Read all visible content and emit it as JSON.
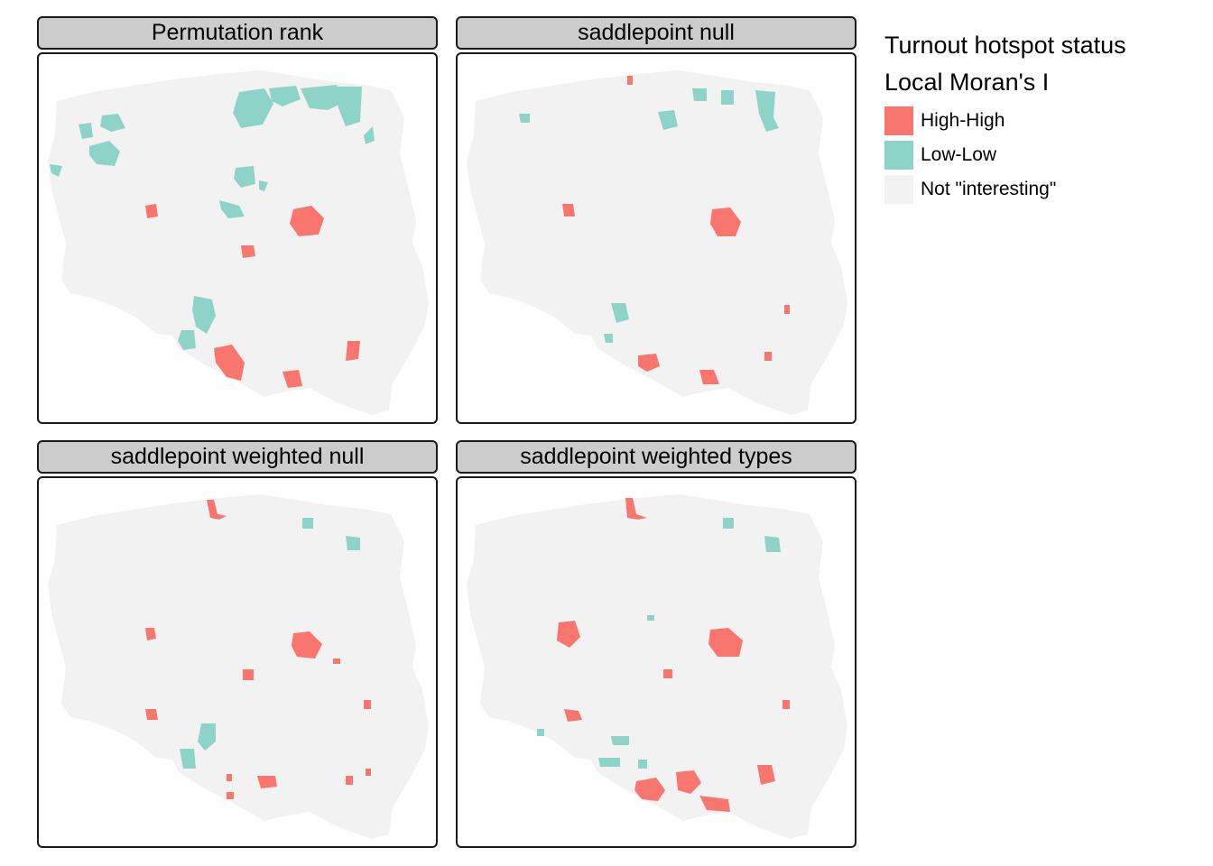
{
  "legend": {
    "title": "Turnout hotspot status",
    "subtitle": "Local Moran's I",
    "items": [
      {
        "label": "High-High",
        "color": "#f8766d"
      },
      {
        "label": "Low-Low",
        "color": "#8ed3c7"
      },
      {
        "label": "Not \"interesting\"",
        "color": "#f2f2f2"
      }
    ]
  },
  "colors": {
    "high_high": "#f8766d",
    "low_low": "#8ed3c7",
    "not_interesting": "#f2f2f2"
  },
  "panels": [
    {
      "title": "Permutation rank"
    },
    {
      "title": "saddlepoint null"
    },
    {
      "title": "saddlepoint weighted null"
    },
    {
      "title": "saddlepoint weighted types"
    }
  ]
}
